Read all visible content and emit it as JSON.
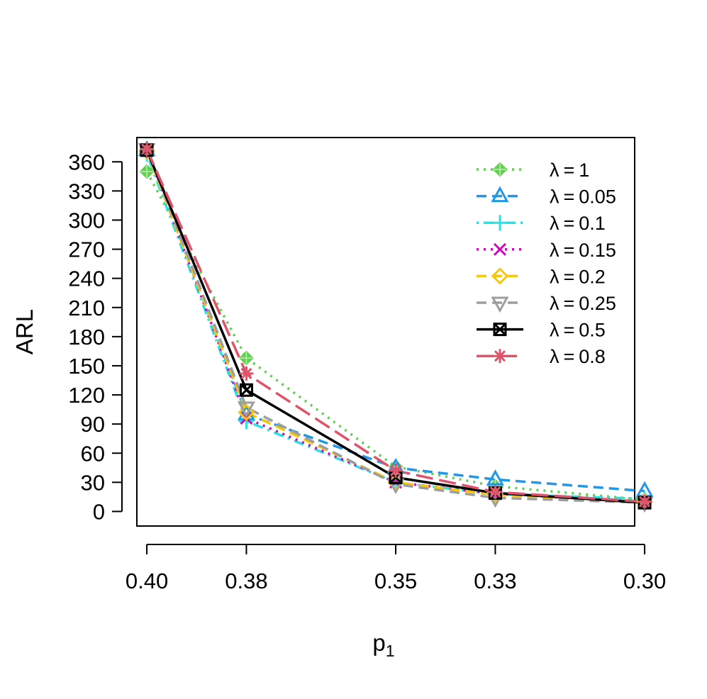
{
  "chart_data": {
    "type": "line",
    "title": "",
    "xlabel": "p",
    "xlabel_subscript": "1",
    "ylabel": "ARL",
    "x": [
      0.4,
      0.38,
      0.35,
      0.33,
      0.3
    ],
    "x_tick_labels": [
      "0.40",
      "0.38",
      "0.35",
      "0.33",
      "0.30"
    ],
    "x_reversed": true,
    "y_ticks": [
      0,
      30,
      60,
      90,
      120,
      150,
      180,
      210,
      240,
      270,
      300,
      330,
      360
    ],
    "ylim": [
      -15,
      385
    ],
    "xlim": [
      0.302,
      0.402
    ],
    "grid": false,
    "legend_position": "top-right",
    "series": [
      {
        "name": "λ = 1",
        "legend_symbol": "λ",
        "legend_value": "1",
        "color": "#61d04f",
        "dash": "dotted",
        "marker": "diamond-plus",
        "values": [
          350,
          158,
          46,
          26,
          12
        ]
      },
      {
        "name": "λ = 0.05",
        "legend_symbol": "λ",
        "legend_value": "0.05",
        "color": "#2297e6",
        "dash": "dashed",
        "marker": "triangle-up",
        "values": [
          372,
          100,
          45,
          33,
          21
        ]
      },
      {
        "name": "λ = 0.1",
        "legend_symbol": "λ",
        "legend_value": "0.1",
        "color": "#28e2e5",
        "dash": "dotdash",
        "marker": "plus",
        "values": [
          368,
          93,
          30,
          18,
          13
        ]
      },
      {
        "name": "λ = 0.15",
        "legend_symbol": "λ",
        "legend_value": "0.15",
        "color": "#cd0bbc",
        "dash": "dotted",
        "marker": "asterisk-x",
        "values": [
          373,
          96,
          30,
          18,
          10
        ]
      },
      {
        "name": "λ = 0.2",
        "legend_symbol": "λ",
        "legend_value": "0.2",
        "color": "#f5c710",
        "dash": "dashed",
        "marker": "diamond",
        "values": [
          371,
          102,
          30,
          17,
          10
        ]
      },
      {
        "name": "λ = 0.25",
        "legend_symbol": "λ",
        "legend_value": "0.25",
        "color": "#9e9e9e",
        "dash": "dashed",
        "marker": "triangle-down",
        "values": [
          373,
          107,
          28,
          14,
          9
        ]
      },
      {
        "name": "λ = 0.5",
        "legend_symbol": "λ",
        "legend_value": "0.5",
        "color": "#000000",
        "dash": "solid",
        "marker": "square-x",
        "values": [
          372,
          125,
          35,
          19,
          9
        ]
      },
      {
        "name": "λ = 0.8",
        "legend_symbol": "λ",
        "legend_value": "0.8",
        "color": "#df536b",
        "dash": "longdash",
        "marker": "star",
        "values": [
          373,
          142,
          42,
          20,
          10
        ]
      }
    ]
  }
}
